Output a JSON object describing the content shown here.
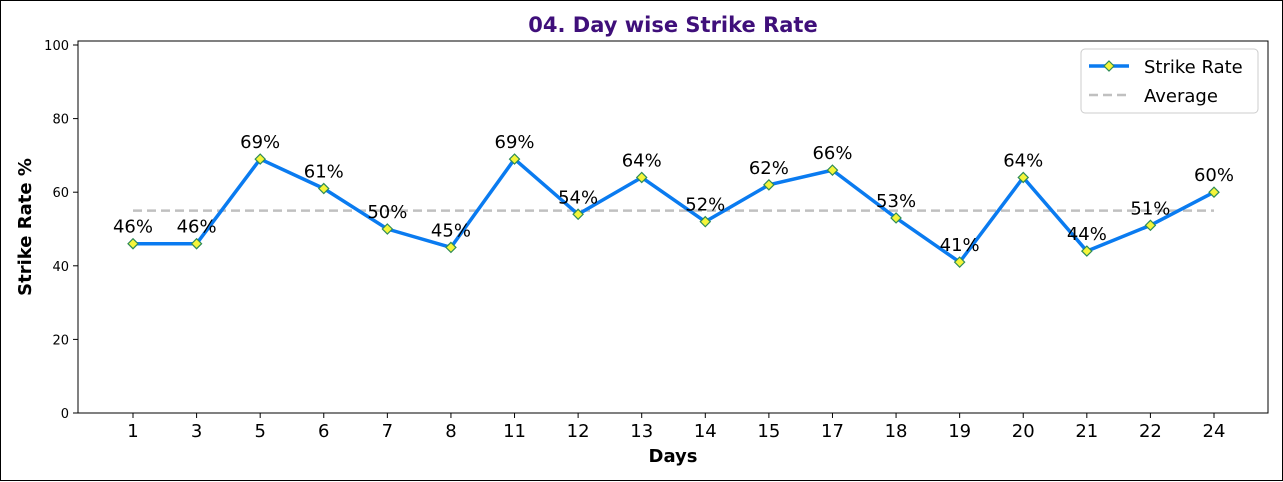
{
  "chart_data": {
    "type": "line",
    "title": "04. Day wise Strike Rate",
    "xlabel": "Days",
    "ylabel": "Strike Rate %",
    "categories": [
      "1",
      "3",
      "5",
      "6",
      "7",
      "8",
      "11",
      "12",
      "13",
      "14",
      "15",
      "17",
      "18",
      "19",
      "20",
      "21",
      "22",
      "24"
    ],
    "series": [
      {
        "name": "Strike Rate",
        "values": [
          46,
          46,
          69,
          61,
          50,
          45,
          69,
          54,
          64,
          52,
          62,
          66,
          53,
          41,
          64,
          44,
          51,
          60
        ],
        "labels": [
          "46%",
          "46%",
          "69%",
          "61%",
          "50%",
          "45%",
          "69%",
          "54%",
          "64%",
          "52%",
          "62%",
          "66%",
          "53%",
          "41%",
          "64%",
          "44%",
          "51%",
          "60%"
        ],
        "color": "#0a7bf0",
        "marker_face": "#f5f53a",
        "marker_edge": "#2e8b57"
      },
      {
        "name": "Average",
        "value": 55,
        "style": "dashed",
        "color": "#c0c0c0"
      }
    ],
    "ylim": [
      0,
      100
    ],
    "yticks": [
      "0",
      "20",
      "40",
      "60",
      "80",
      "100"
    ],
    "grid": false,
    "legend_position": "top-right"
  }
}
